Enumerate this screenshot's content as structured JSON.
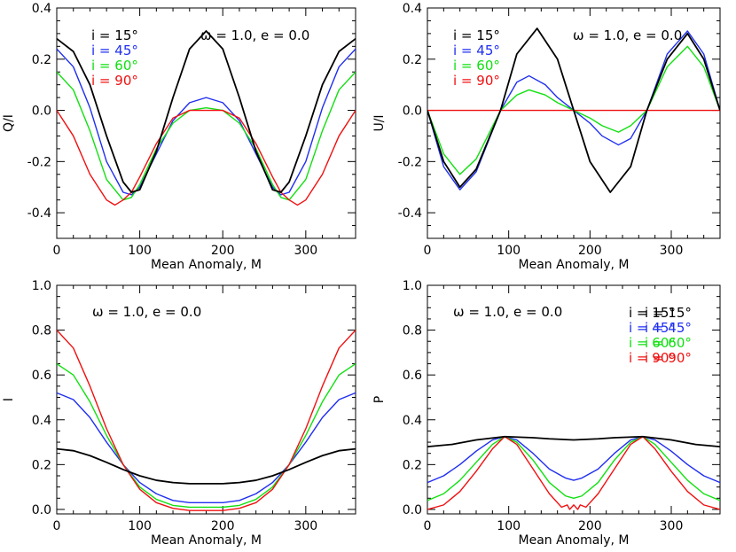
{
  "colors": {
    "i15": "#000000",
    "i45": "#1f2ef0",
    "i60": "#10e010",
    "i90": "#f01010"
  },
  "chart_data": [
    {
      "type": "line",
      "id": "qi",
      "xlabel": "Mean Anomaly, M",
      "ylabel": "Q/I",
      "xlim": [
        0,
        360
      ],
      "ylim": [
        -0.5,
        0.4
      ],
      "xticks": [
        0,
        100,
        200,
        300
      ],
      "xtick_labels": [
        "0",
        "100",
        "200",
        "300"
      ],
      "yticks": [
        -0.4,
        -0.2,
        0.0,
        0.2,
        0.4
      ],
      "ytick_labels": [
        "-0.4",
        "-0.2",
        "0.0",
        "0.2",
        "0.4"
      ],
      "annotation": "ω = 1.0, e = 0.0",
      "legend_position": "top-left",
      "series": [
        {
          "name": "i = 15°",
          "color_key": "i15",
          "x": [
            0,
            20,
            40,
            60,
            80,
            90,
            100,
            120,
            140,
            160,
            180,
            200,
            220,
            240,
            260,
            270,
            280,
            300,
            320,
            340,
            360
          ],
          "values": [
            0.28,
            0.23,
            0.1,
            -0.1,
            -0.28,
            -0.32,
            -0.31,
            -0.16,
            0.05,
            0.24,
            0.31,
            0.24,
            0.05,
            -0.16,
            -0.31,
            -0.32,
            -0.28,
            -0.1,
            0.1,
            0.23,
            0.28
          ]
        },
        {
          "name": "i = 45°",
          "color_key": "i45",
          "x": [
            0,
            20,
            40,
            60,
            80,
            90,
            100,
            120,
            140,
            160,
            180,
            200,
            220,
            240,
            260,
            270,
            280,
            300,
            320,
            340,
            360
          ],
          "values": [
            0.24,
            0.17,
            0.01,
            -0.2,
            -0.32,
            -0.33,
            -0.3,
            -0.17,
            -0.04,
            0.03,
            0.05,
            0.03,
            -0.04,
            -0.17,
            -0.3,
            -0.33,
            -0.32,
            -0.2,
            0.01,
            0.17,
            0.24
          ]
        },
        {
          "name": "i = 60°",
          "color_key": "i60",
          "x": [
            0,
            20,
            40,
            60,
            80,
            90,
            100,
            120,
            140,
            160,
            180,
            200,
            220,
            240,
            260,
            270,
            280,
            300,
            320,
            340,
            360
          ],
          "values": [
            0.15,
            0.08,
            -0.08,
            -0.27,
            -0.35,
            -0.34,
            -0.29,
            -0.15,
            -0.05,
            0.0,
            0.01,
            0.0,
            -0.05,
            -0.15,
            -0.29,
            -0.34,
            -0.35,
            -0.27,
            -0.08,
            0.08,
            0.15
          ]
        },
        {
          "name": "i = 90°",
          "color_key": "i90",
          "x": [
            0,
            20,
            40,
            60,
            70,
            80,
            90,
            100,
            120,
            140,
            160,
            180,
            200,
            220,
            240,
            260,
            270,
            280,
            290,
            300,
            320,
            340,
            360
          ],
          "values": [
            0.0,
            -0.1,
            -0.25,
            -0.35,
            -0.37,
            -0.35,
            -0.32,
            -0.26,
            -0.13,
            -0.03,
            0.0,
            0.0,
            0.0,
            -0.03,
            -0.13,
            -0.26,
            -0.32,
            -0.35,
            -0.37,
            -0.35,
            -0.25,
            -0.1,
            0.0
          ]
        }
      ]
    },
    {
      "type": "line",
      "id": "ui",
      "xlabel": "Mean Anomaly, M",
      "ylabel": "U/I",
      "xlim": [
        0,
        360
      ],
      "ylim": [
        -0.5,
        0.4
      ],
      "xticks": [
        0,
        100,
        200,
        300
      ],
      "xtick_labels": [
        "0",
        "100",
        "200",
        "300"
      ],
      "yticks": [
        -0.4,
        -0.2,
        0.0,
        0.2,
        0.4
      ],
      "ytick_labels": [
        "-0.4",
        "-0.2",
        "0.0",
        "0.2",
        "0.4"
      ],
      "annotation": "ω = 1.0, e = 0.0",
      "legend_position": "top-left",
      "series": [
        {
          "name": "i = 15°",
          "color_key": "i15",
          "x": [
            0,
            20,
            40,
            60,
            90,
            110,
            135,
            160,
            180,
            200,
            225,
            250,
            270,
            295,
            320,
            340,
            360
          ],
          "values": [
            0.0,
            -0.2,
            -0.3,
            -0.23,
            0.0,
            0.22,
            0.32,
            0.2,
            0.0,
            -0.2,
            -0.32,
            -0.22,
            0.0,
            0.2,
            0.3,
            0.2,
            0.0
          ]
        },
        {
          "name": "i = 45°",
          "color_key": "i45",
          "x": [
            0,
            20,
            40,
            60,
            90,
            110,
            125,
            145,
            160,
            180,
            200,
            215,
            235,
            250,
            270,
            295,
            320,
            340,
            360
          ],
          "values": [
            0.0,
            -0.22,
            -0.31,
            -0.24,
            0.0,
            0.11,
            0.135,
            0.1,
            0.05,
            0.0,
            -0.05,
            -0.1,
            -0.135,
            -0.11,
            0.0,
            0.22,
            0.31,
            0.22,
            0.0
          ]
        },
        {
          "name": "i = 60°",
          "color_key": "i60",
          "x": [
            0,
            20,
            40,
            60,
            90,
            110,
            125,
            145,
            160,
            180,
            200,
            215,
            235,
            250,
            270,
            295,
            320,
            340,
            360
          ],
          "values": [
            0.0,
            -0.17,
            -0.25,
            -0.19,
            0.0,
            0.06,
            0.08,
            0.06,
            0.03,
            0.0,
            -0.03,
            -0.06,
            -0.085,
            -0.06,
            0.0,
            0.17,
            0.25,
            0.17,
            0.0
          ]
        },
        {
          "name": "i = 90°",
          "color_key": "i90",
          "x": [
            0,
            90,
            180,
            270,
            360
          ],
          "values": [
            0.0,
            0.0,
            0.0,
            0.0,
            0.0
          ]
        }
      ]
    },
    {
      "type": "line",
      "id": "i",
      "xlabel": "Mean Anomaly, M",
      "ylabel": "I",
      "xlim": [
        0,
        360
      ],
      "ylim": [
        -0.02,
        1.0
      ],
      "xticks": [
        0,
        100,
        200,
        300
      ],
      "xtick_labels": [
        "0",
        "100",
        "200",
        "300"
      ],
      "yticks": [
        0.0,
        0.2,
        0.4,
        0.6,
        0.8,
        1.0
      ],
      "ytick_labels": [
        "0.0",
        "0.2",
        "0.4",
        "0.6",
        "0.8",
        "1.0"
      ],
      "annotation": "ω = 1.0, e = 0.0",
      "legend_position": "top-right",
      "series": [
        {
          "name": "i = 15°",
          "color_key": "i15",
          "x": [
            0,
            20,
            40,
            60,
            80,
            100,
            120,
            140,
            160,
            180,
            200,
            220,
            240,
            260,
            280,
            300,
            320,
            340,
            360
          ],
          "values": [
            0.27,
            0.262,
            0.24,
            0.21,
            0.178,
            0.15,
            0.13,
            0.12,
            0.115,
            0.115,
            0.115,
            0.12,
            0.13,
            0.15,
            0.178,
            0.21,
            0.24,
            0.262,
            0.27
          ]
        },
        {
          "name": "i = 45°",
          "color_key": "i45",
          "x": [
            0,
            20,
            40,
            60,
            80,
            100,
            120,
            140,
            160,
            180,
            200,
            220,
            240,
            260,
            280,
            300,
            320,
            340,
            360
          ],
          "values": [
            0.52,
            0.49,
            0.41,
            0.3,
            0.2,
            0.12,
            0.07,
            0.04,
            0.03,
            0.03,
            0.03,
            0.04,
            0.07,
            0.12,
            0.2,
            0.3,
            0.41,
            0.49,
            0.52
          ]
        },
        {
          "name": "i = 60°",
          "color_key": "i60",
          "x": [
            0,
            20,
            40,
            60,
            80,
            100,
            120,
            140,
            160,
            180,
            200,
            220,
            240,
            260,
            280,
            300,
            320,
            340,
            360
          ],
          "values": [
            0.65,
            0.6,
            0.48,
            0.33,
            0.2,
            0.1,
            0.045,
            0.018,
            0.01,
            0.01,
            0.01,
            0.018,
            0.045,
            0.1,
            0.2,
            0.33,
            0.48,
            0.6,
            0.65
          ]
        },
        {
          "name": "i = 90°",
          "color_key": "i90",
          "x": [
            0,
            20,
            40,
            60,
            80,
            100,
            120,
            140,
            160,
            180,
            200,
            220,
            240,
            260,
            280,
            300,
            320,
            340,
            360
          ],
          "values": [
            0.8,
            0.72,
            0.55,
            0.36,
            0.2,
            0.09,
            0.03,
            0.005,
            -0.005,
            -0.005,
            -0.005,
            0.005,
            0.03,
            0.09,
            0.2,
            0.36,
            0.55,
            0.72,
            0.8
          ]
        }
      ]
    },
    {
      "type": "line",
      "id": "p",
      "xlabel": "Mean Anomaly, M",
      "ylabel": "P",
      "xlim": [
        0,
        360
      ],
      "ylim": [
        -0.02,
        1.0
      ],
      "xticks": [
        0,
        100,
        200,
        300
      ],
      "xtick_labels": [
        "0",
        "100",
        "200",
        "300"
      ],
      "yticks": [
        0.0,
        0.2,
        0.4,
        0.6,
        0.8,
        1.0
      ],
      "ytick_labels": [
        "0.0",
        "0.2",
        "0.4",
        "0.6",
        "0.8",
        "1.0"
      ],
      "annotation": "ω = 1.0, e = 0.0",
      "legend_position": "top-right",
      "series": [
        {
          "name": "i = 15°",
          "color_key": "i15",
          "x": [
            0,
            30,
            60,
            95,
            130,
            150,
            180,
            210,
            230,
            265,
            300,
            330,
            360
          ],
          "values": [
            0.28,
            0.29,
            0.31,
            0.325,
            0.32,
            0.315,
            0.31,
            0.315,
            0.32,
            0.325,
            0.31,
            0.29,
            0.28
          ]
        },
        {
          "name": "i = 45°",
          "color_key": "i45",
          "x": [
            0,
            20,
            40,
            60,
            80,
            95,
            110,
            130,
            150,
            170,
            180,
            190,
            210,
            230,
            250,
            265,
            280,
            300,
            320,
            340,
            360
          ],
          "values": [
            0.12,
            0.15,
            0.2,
            0.26,
            0.31,
            0.325,
            0.31,
            0.25,
            0.18,
            0.14,
            0.13,
            0.14,
            0.18,
            0.25,
            0.31,
            0.325,
            0.31,
            0.26,
            0.2,
            0.15,
            0.12
          ]
        },
        {
          "name": "i = 60°",
          "color_key": "i60",
          "x": [
            0,
            20,
            40,
            60,
            80,
            95,
            110,
            130,
            150,
            170,
            180,
            190,
            210,
            230,
            250,
            265,
            280,
            300,
            320,
            340,
            360
          ],
          "values": [
            0.04,
            0.07,
            0.13,
            0.21,
            0.29,
            0.325,
            0.3,
            0.22,
            0.12,
            0.06,
            0.05,
            0.06,
            0.12,
            0.22,
            0.3,
            0.325,
            0.29,
            0.21,
            0.13,
            0.07,
            0.04
          ]
        },
        {
          "name": "i = 90°",
          "color_key": "i90",
          "x": [
            0,
            20,
            40,
            60,
            80,
            95,
            110,
            130,
            150,
            165,
            172,
            175,
            180,
            185,
            188,
            195,
            210,
            230,
            250,
            265,
            280,
            300,
            320,
            340,
            360
          ],
          "values": [
            0.0,
            0.02,
            0.08,
            0.17,
            0.27,
            0.325,
            0.29,
            0.18,
            0.07,
            0.01,
            0.02,
            0.0,
            0.02,
            0.0,
            0.02,
            0.01,
            0.07,
            0.18,
            0.29,
            0.325,
            0.27,
            0.17,
            0.08,
            0.02,
            0.0
          ]
        }
      ]
    }
  ]
}
